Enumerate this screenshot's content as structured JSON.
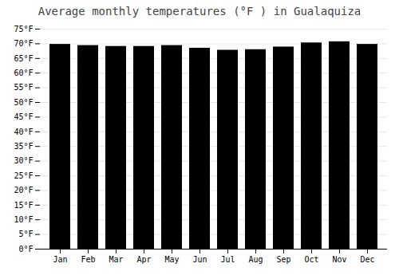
{
  "chart_data": {
    "type": "bar",
    "title": "Average monthly temperatures (°F ) in Gualaquiza",
    "categories": [
      "Jan",
      "Feb",
      "Mar",
      "Apr",
      "May",
      "Jun",
      "Jul",
      "Aug",
      "Sep",
      "Oct",
      "Nov",
      "Dec"
    ],
    "values": [
      69.8,
      69.4,
      69.1,
      69.1,
      69.4,
      68.5,
      67.8,
      68.0,
      68.9,
      70.3,
      70.7,
      69.8
    ],
    "ylim": [
      0,
      75
    ],
    "yticks": [
      {
        "value": 0,
        "label": "0°F"
      },
      {
        "value": 5,
        "label": "5°F"
      },
      {
        "value": 10,
        "label": "10°F"
      },
      {
        "value": 15,
        "label": "15°F"
      },
      {
        "value": 20,
        "label": "20°F"
      },
      {
        "value": 25,
        "label": "25°F"
      },
      {
        "value": 30,
        "label": "30°F"
      },
      {
        "value": 35,
        "label": "35°F"
      },
      {
        "value": 40,
        "label": "40°F"
      },
      {
        "value": 45,
        "label": "45°F"
      },
      {
        "value": 50,
        "label": "50°F"
      },
      {
        "value": 55,
        "label": "55°F"
      },
      {
        "value": 60,
        "label": "60°F"
      },
      {
        "value": 65,
        "label": "65°F"
      },
      {
        "value": 70,
        "label": "70°F"
      },
      {
        "value": 75,
        "label": "75°F"
      }
    ],
    "grid": true
  }
}
